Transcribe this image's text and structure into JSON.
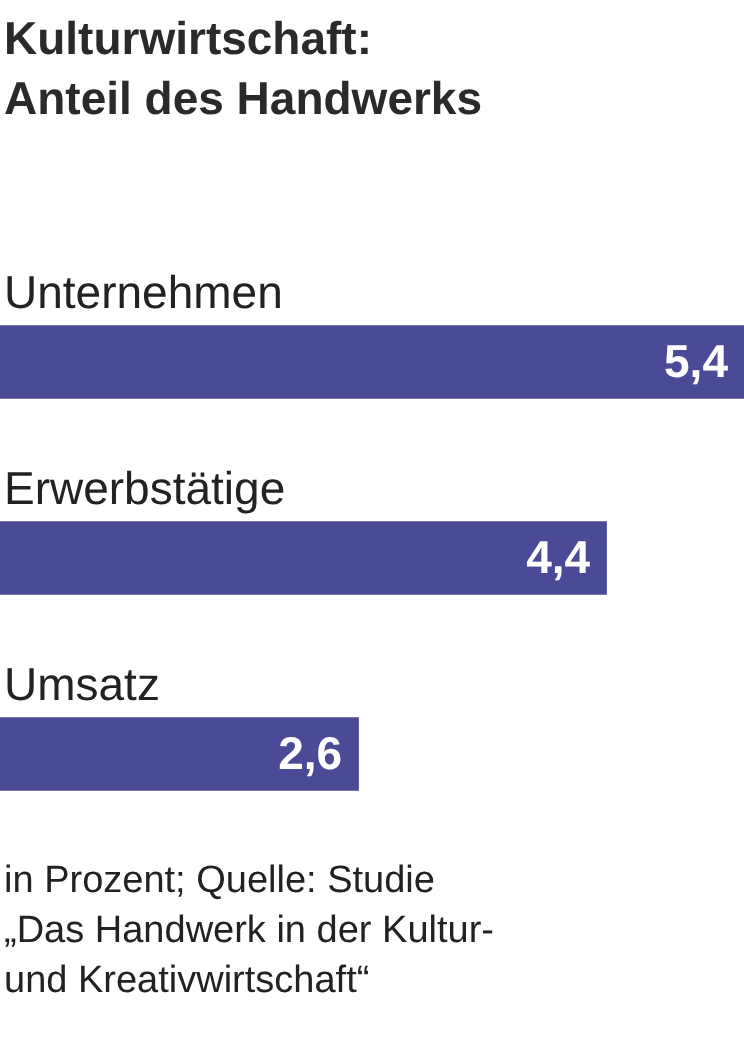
{
  "chart_data": {
    "type": "bar",
    "orientation": "horizontal",
    "title": "Kulturwirtschaft:\nAnteil des Handwerks",
    "categories": [
      "Unternehmen",
      "Erwerbstätige",
      "Umsatz"
    ],
    "values": [
      5.4,
      4.4,
      2.6
    ],
    "value_labels": [
      "5,4",
      "4,4",
      "2,6"
    ],
    "color": "#4b4a97",
    "xlim": [
      0,
      5.4
    ],
    "legend": false,
    "annotations": [
      "in Prozent; Quelle: Studie\n„Das Handwerk in der Kultur-\nund Kreativwirtschaft“"
    ]
  }
}
